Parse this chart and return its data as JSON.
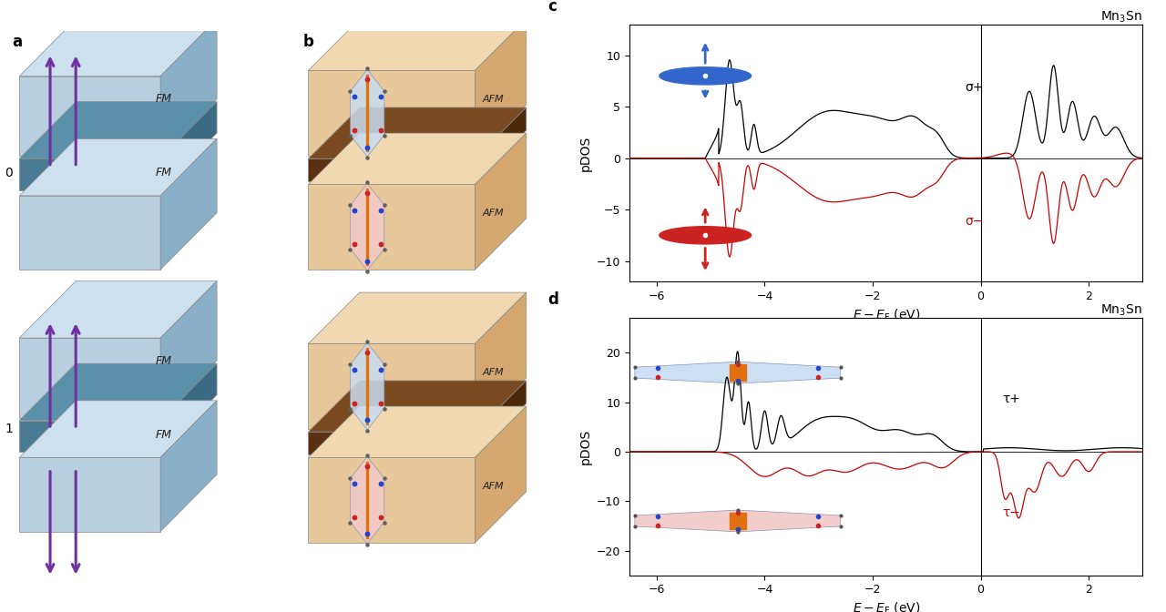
{
  "panel_label_fontsize": 12,
  "panel_label_weight": "bold",
  "fig_bg": "#ffffff",
  "panel_c": {
    "title": "Mn$_3$Sn",
    "xlabel": "$E - E_{\\mathrm{F}}$ (eV)",
    "ylabel": "pDOS",
    "xlim": [
      -6.5,
      3.0
    ],
    "ylim": [
      -12,
      13
    ],
    "yticks": [
      -10,
      -5,
      0,
      5,
      10
    ],
    "xticks": [
      -6,
      -4,
      -2,
      0,
      2
    ],
    "vline_x": 0,
    "hline_y": 0,
    "sigma_plus_label": "σ+",
    "sigma_minus_label": "σ−",
    "black_color": "#000000",
    "red_color": "#cc0000"
  },
  "panel_d": {
    "title": "Mn$_3$Sn",
    "xlabel": "$E - E_{\\mathrm{F}}$ (eV)",
    "ylabel": "pDOS",
    "xlim": [
      -6.5,
      3.0
    ],
    "ylim": [
      -25,
      27
    ],
    "yticks": [
      -20,
      -10,
      0,
      10,
      20
    ],
    "xticks": [
      -6,
      -4,
      -2,
      0,
      2
    ],
    "vline_x": 0,
    "hline_y": 0,
    "tau_plus_label": "τ+",
    "tau_minus_label": "τ−",
    "black_color": "#000000",
    "red_color": "#cc0000"
  },
  "fm_light": "#b8cfe0",
  "fm_mid": "#8aafc8",
  "fm_dark": "#6090b0",
  "fm_barrier": "#4a7a94",
  "fm_barrier_top": "#5a90aa",
  "fm_barrier_side": "#3a6a84",
  "arrow_color": "#7030a0",
  "afm_light": "#e8c89a",
  "afm_mid": "#d4a870",
  "afm_dark": "#b88040",
  "afm_barrier": "#5a3010",
  "afm_barrier_top": "#7a4a20",
  "afm_barrier_side": "#4a2808"
}
